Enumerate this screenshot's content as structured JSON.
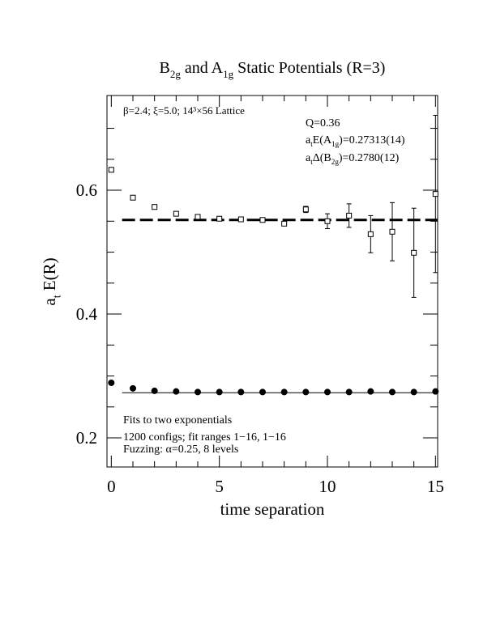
{
  "chart_data": {
    "type": "scatter",
    "title": [
      "B",
      "2g",
      " and A",
      "1g",
      " Static Potentials (R=3)"
    ],
    "xlabel": "time separation",
    "ylabel": [
      "a",
      "t",
      " E(R)"
    ],
    "xlim": [
      -0.2,
      15.1
    ],
    "ylim": [
      0.153,
      0.753
    ],
    "xticks": [
      0,
      5,
      10,
      15
    ],
    "yticks": [
      0.2,
      0.4,
      0.6
    ],
    "xminorticks": [
      1,
      2,
      3,
      4,
      6,
      7,
      8,
      9,
      11,
      12,
      13,
      14
    ],
    "yminorticks": [
      0.25,
      0.3,
      0.35,
      0.45,
      0.5,
      0.55,
      0.65,
      0.7
    ],
    "color": "#000000",
    "x": [
      0,
      1,
      2,
      3,
      4,
      5,
      6,
      7,
      8,
      9,
      10,
      11,
      12,
      13,
      14,
      15
    ],
    "series": [
      {
        "marker": "square",
        "values": [
          0.633,
          0.588,
          0.573,
          0.562,
          0.557,
          0.554,
          0.553,
          0.552,
          0.546,
          0.569,
          0.55,
          0.559,
          0.529,
          0.533,
          0.499,
          0.594
        ],
        "errors": [
          0.002,
          0.002,
          0.002,
          0.002,
          0.003,
          0.002,
          0.002,
          0.003,
          0.003,
          0.005,
          0.012,
          0.019,
          0.03,
          0.047,
          0.072,
          0.127
        ]
      },
      {
        "marker": "circle",
        "values": [
          0.289,
          0.28,
          0.276,
          0.275,
          0.274,
          0.274,
          0.274,
          0.274,
          0.274,
          0.274,
          0.274,
          0.274,
          0.275,
          0.274,
          0.274,
          0.275
        ],
        "errors": [
          0.001,
          0.001,
          0.001,
          0.001,
          0.001,
          0.001,
          0.001,
          0.001,
          0.001,
          0.001,
          0.001,
          0.001,
          0.001,
          0.001,
          0.001,
          0.001
        ]
      }
    ],
    "fits": [
      {
        "value": 0.552,
        "xrange": [
          0.5,
          15.1
        ],
        "style": "dashed"
      },
      {
        "value": 0.273,
        "xrange": [
          0.5,
          15.1
        ],
        "style": "solid"
      }
    ],
    "annotations": {
      "lattice": "β=2.4; ξ=5.0; 14³×56 Lattice",
      "q": "Q=0.36",
      "energy": [
        "a",
        "t",
        "E(A",
        "1g",
        ")=0.27313(14)"
      ],
      "gap": [
        "a",
        "t",
        "Δ(B",
        "2g",
        ")=0.2780(12)"
      ],
      "fits": "Fits to two exponentials",
      "configs": "1200 configs; fit ranges 1−16, 1−16",
      "fuzzing": "Fuzzing: α=0.25, 8 levels"
    }
  }
}
